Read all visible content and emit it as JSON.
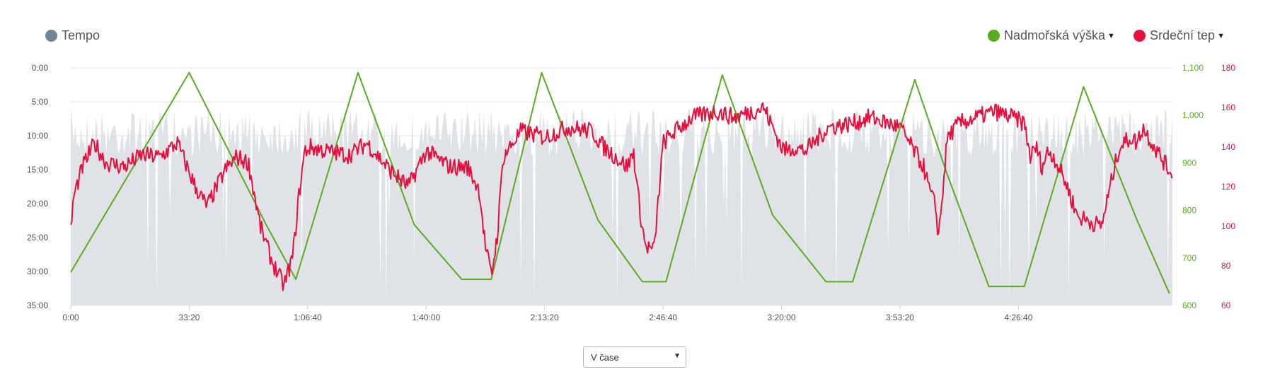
{
  "legend": {
    "tempo": "Tempo",
    "altitude": "Nadmořská výška",
    "heart_rate": "Srdeční tep"
  },
  "view_select": {
    "selected": "V čase"
  },
  "colors": {
    "tempo": "#6f8699",
    "tempo_fill": "#dfe2e6",
    "altitude": "#5aab1e",
    "heart_rate": "#e5103d",
    "grid": "#e2e2e2",
    "axis_text": "#555555"
  },
  "chart_data": [
    {
      "type": "area",
      "series": [
        {
          "name": "Tempo"
        }
      ],
      "xlabel": "",
      "ylabel": "",
      "x_unit": "elapsed time (h:mm:ss)",
      "xlim_seconds": [
        0,
        18600
      ],
      "x_ticks": [
        "0:00",
        "33:20",
        "1:06:40",
        "1:40:00",
        "2:13:20",
        "2:46:40",
        "3:20:00",
        "3:53:20",
        "4:26:40"
      ],
      "y_ticks": [
        "0:00",
        "5:00",
        "10:00",
        "15:00",
        "20:00",
        "25:00",
        "30:00",
        "35:00"
      ],
      "ylim_minutes": [
        0,
        35
      ],
      "y_reversed": true,
      "pace_range_min_per_km": [
        6,
        14
      ],
      "grid": true,
      "legend_position": "top-left"
    },
    {
      "type": "line",
      "series": [
        {
          "name": "Nadmořská výška",
          "x_seconds": [
            0,
            2000,
            2750,
            3300,
            3800,
            4850,
            5800,
            6600,
            7100,
            7950,
            8900,
            9650,
            10050,
            11000,
            11850,
            12750,
            13200,
            14250,
            14800,
            15500,
            16100,
            17100,
            18000,
            18550
          ],
          "y": [
            670,
            1090,
            905,
            770,
            655,
            1090,
            770,
            655,
            655,
            1090,
            780,
            650,
            650,
            1085,
            790,
            650,
            650,
            1075,
            875,
            640,
            640,
            1060,
            780,
            625
          ]
        }
      ],
      "y_ticks": [
        "600",
        "700",
        "800",
        "900",
        "1,000",
        "1,100"
      ],
      "ylim": [
        600,
        1100
      ],
      "axis_side": "right"
    },
    {
      "type": "line",
      "series": [
        {
          "name": "Srdeční tep",
          "x_seconds": [
            0,
            50,
            200,
            400,
            600,
            900,
            1200,
            1500,
            1800,
            2100,
            2300,
            2600,
            2800,
            3000,
            3200,
            3400,
            3600,
            3750,
            3850,
            3950,
            4050,
            4300,
            4700,
            5000,
            5400,
            5700,
            6000,
            6400,
            6700,
            6900,
            7000,
            7100,
            7200,
            7300,
            7600,
            8000,
            8400,
            8800,
            9000,
            9400,
            9500,
            9600,
            9700,
            9850,
            10000,
            10200,
            10500,
            10900,
            11200,
            11500,
            11700,
            12000,
            12100,
            12200,
            12400,
            12800,
            13200,
            13500,
            14000,
            14200,
            14400,
            14500,
            14600,
            14650,
            14700,
            14800,
            15000,
            15300,
            15600,
            15900,
            16100,
            16200,
            16300,
            16400,
            16500,
            16600,
            16800,
            17000,
            17400,
            17700,
            17900,
            18000,
            18100,
            18300,
            18550
          ],
          "y": [
            98,
            115,
            130,
            142,
            132,
            130,
            136,
            135,
            142,
            120,
            110,
            128,
            135,
            132,
            100,
            82,
            70,
            85,
            115,
            138,
            140,
            138,
            136,
            142,
            128,
            120,
            138,
            130,
            130,
            118,
            90,
            75,
            95,
            135,
            148,
            145,
            150,
            148,
            140,
            130,
            138,
            110,
            90,
            88,
            142,
            148,
            155,
            158,
            155,
            158,
            160,
            140,
            138,
            140,
            138,
            150,
            152,
            155,
            150,
            140,
            130,
            118,
            110,
            95,
            110,
            145,
            152,
            155,
            158,
            155,
            152,
            135,
            140,
            130,
            138,
            135,
            122,
            105,
            100,
            140,
            145,
            142,
            150,
            140,
            128
          ]
        }
      ],
      "y_ticks": [
        "60",
        "80",
        "100",
        "120",
        "140",
        "160",
        "180"
      ],
      "ylim": [
        60,
        180
      ],
      "axis_side": "right"
    }
  ]
}
